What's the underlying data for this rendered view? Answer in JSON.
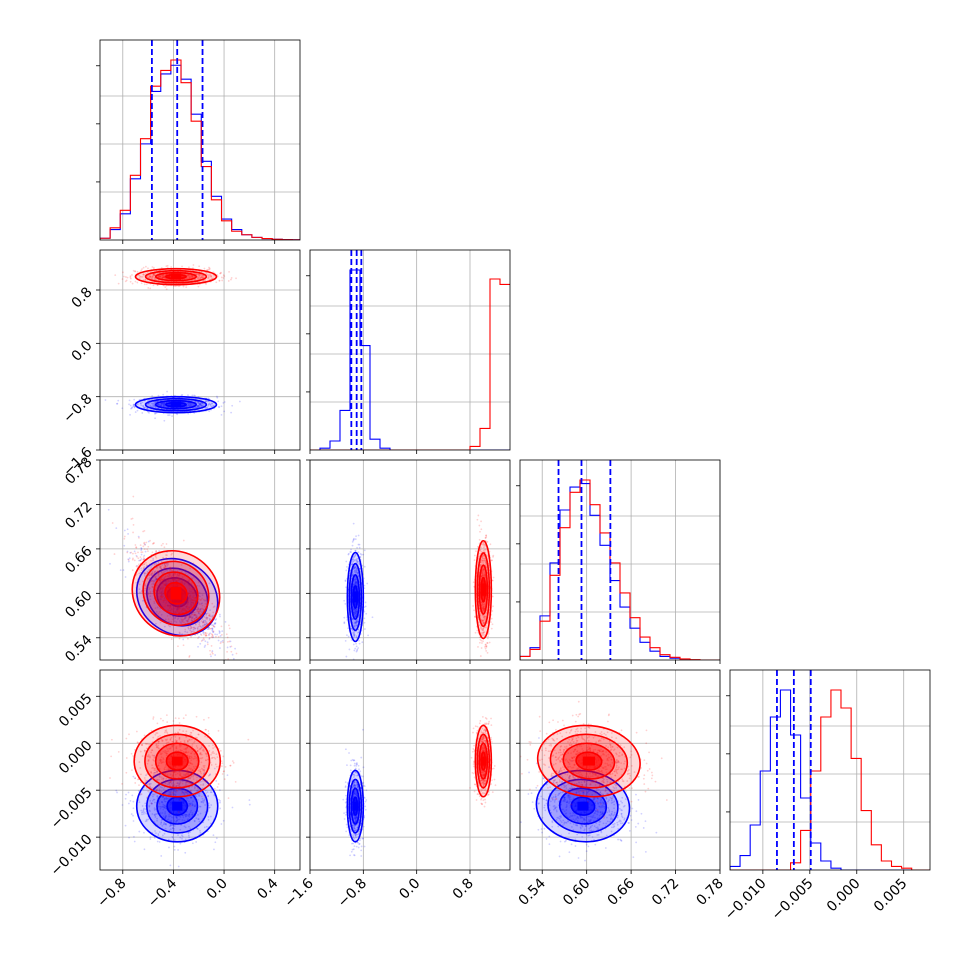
{
  "chart_data": {
    "type": "corner",
    "parameters": 4,
    "colors": {
      "sample_a": "#0000ff",
      "sample_b": "#ff0000"
    },
    "grid": true,
    "ranges": [
      [
        -0.98,
        0.6
      ],
      [
        -1.6,
        1.4
      ],
      [
        0.51,
        0.78
      ],
      [
        -0.0135,
        0.0078
      ]
    ],
    "ticks": {
      "p0": [
        "−0.8",
        "−0.4",
        "0.0",
        "0.4"
      ],
      "p1": [
        "−1.6",
        "−0.8",
        "0.0",
        "0.8"
      ],
      "p2": [
        "0.54",
        "0.60",
        "0.66",
        "0.72",
        "0.78"
      ],
      "p3": [
        "−0.010",
        "−0.005",
        "0.000",
        "0.005"
      ]
    },
    "tick_values": {
      "p0": [
        -0.8,
        -0.4,
        0.0,
        0.4
      ],
      "p1": [
        -1.6,
        -0.8,
        0.0,
        0.8
      ],
      "p2": [
        0.54,
        0.6,
        0.66,
        0.72,
        0.78
      ],
      "p3": [
        -0.01,
        -0.005,
        0.0,
        0.005
      ]
    },
    "histograms": [
      {
        "param": 0,
        "bins": [
          -0.98,
          -0.9,
          -0.82,
          -0.74,
          -0.66,
          -0.58,
          -0.5,
          -0.42,
          -0.34,
          -0.26,
          -0.18,
          -0.1,
          -0.02,
          0.06,
          0.14,
          0.22,
          0.3,
          0.38,
          0.46,
          0.54,
          0.62
        ],
        "blue": [
          0.01,
          0.06,
          0.15,
          0.35,
          0.55,
          0.85,
          0.95,
          1.0,
          0.92,
          0.72,
          0.45,
          0.25,
          0.12,
          0.06,
          0.03,
          0.015,
          0.008,
          0.004,
          0.002,
          0.001
        ],
        "red": [
          0.01,
          0.07,
          0.17,
          0.37,
          0.58,
          0.88,
          0.97,
          1.03,
          0.9,
          0.68,
          0.42,
          0.23,
          0.11,
          0.05,
          0.03,
          0.015,
          0.008,
          0.004,
          0.002,
          0.001
        ],
        "quantiles": [
          -0.57,
          -0.37,
          -0.17
        ]
      },
      {
        "param": 1,
        "bins": [
          -1.6,
          -1.45,
          -1.3,
          -1.15,
          -1.0,
          -0.85,
          -0.7,
          -0.55,
          -0.4,
          -0.25,
          -0.1,
          0.05,
          0.2,
          0.35,
          0.5,
          0.65,
          0.8,
          0.95,
          1.1,
          1.25,
          1.4
        ],
        "blue": [
          0.0,
          0.01,
          0.05,
          0.22,
          1.0,
          0.58,
          0.06,
          0.01,
          0,
          0,
          0,
          0,
          0,
          0,
          0,
          0,
          0,
          0,
          0,
          0
        ],
        "red": [
          0,
          0,
          0,
          0,
          0,
          0,
          0,
          0,
          0,
          0,
          0,
          0,
          0,
          0,
          0,
          0,
          0.02,
          0.12,
          0.95,
          0.92
        ],
        "red_tail": 0.06,
        "quantiles": [
          -0.98,
          -0.9,
          -0.83
        ]
      },
      {
        "param": 2,
        "bins": [
          0.51,
          0.5235,
          0.537,
          0.5505,
          0.564,
          0.5775,
          0.591,
          0.6045,
          0.618,
          0.6315,
          0.645,
          0.6585,
          0.672,
          0.6855,
          0.699,
          0.7125,
          0.726,
          0.7395,
          0.753,
          0.7665,
          0.78
        ],
        "blue": [
          0.02,
          0.07,
          0.25,
          0.55,
          0.85,
          0.98,
          1.0,
          0.82,
          0.65,
          0.45,
          0.3,
          0.18,
          0.1,
          0.05,
          0.02,
          0.01,
          0.005,
          0,
          0,
          0
        ],
        "red": [
          0.02,
          0.06,
          0.22,
          0.48,
          0.75,
          0.95,
          1.02,
          0.88,
          0.72,
          0.55,
          0.38,
          0.24,
          0.13,
          0.07,
          0.03,
          0.015,
          0.006,
          0.002,
          0,
          0
        ],
        "quantiles": [
          0.562,
          0.593,
          0.632
        ]
      },
      {
        "param": 3,
        "bins": [
          -0.0135,
          -0.01243,
          -0.01135,
          -0.01028,
          -0.0092,
          -0.00813,
          -0.00705,
          -0.00598,
          -0.0049,
          -0.00383,
          -0.00275,
          -0.00168,
          -0.0006,
          0.00047,
          0.00155,
          0.00262,
          0.0037,
          0.00477,
          0.00585,
          0.00692,
          0.008
        ],
        "blue": [
          0.02,
          0.08,
          0.25,
          0.55,
          0.85,
          1.0,
          0.75,
          0.4,
          0.15,
          0.05,
          0.01,
          0,
          0,
          0,
          0,
          0,
          0,
          0,
          0,
          0
        ],
        "red": [
          0,
          0,
          0,
          0,
          0,
          0,
          0.04,
          0.22,
          0.55,
          0.85,
          1.0,
          0.9,
          0.62,
          0.33,
          0.14,
          0.05,
          0.02,
          0.01,
          0,
          0
        ],
        "quantiles": [
          -0.0085,
          -0.0067,
          -0.0049
        ]
      }
    ],
    "scatter_panels": [
      {
        "row": 1,
        "col": 0,
        "blue_center": [
          -0.38,
          -0.92
        ],
        "blue_sd": [
          0.16,
          0.06
        ],
        "red_center": [
          -0.38,
          1.0
        ],
        "red_sd": [
          0.16,
          0.06
        ],
        "rho": 0
      },
      {
        "row": 2,
        "col": 0,
        "blue_center": [
          -0.37,
          0.595
        ],
        "blue_sd": [
          0.16,
          0.03
        ],
        "red_center": [
          -0.38,
          0.6
        ],
        "red_sd": [
          0.17,
          0.034
        ],
        "rho": -0.75
      },
      {
        "row": 2,
        "col": 1,
        "blue_center": [
          -0.92,
          0.595
        ],
        "blue_sd": [
          0.06,
          0.03
        ],
        "red_center": [
          1.0,
          0.605
        ],
        "red_sd": [
          0.06,
          0.033
        ],
        "rho": 0
      },
      {
        "row": 3,
        "col": 0,
        "blue_center": [
          -0.37,
          -0.0067
        ],
        "blue_sd": [
          0.16,
          0.0019
        ],
        "red_center": [
          -0.37,
          -0.0019
        ],
        "red_sd": [
          0.17,
          0.0019
        ],
        "rho": 0
      },
      {
        "row": 3,
        "col": 1,
        "blue_center": [
          -0.92,
          -0.0067
        ],
        "blue_sd": [
          0.06,
          0.0019
        ],
        "red_center": [
          1.0,
          -0.0019
        ],
        "red_sd": [
          0.06,
          0.0019
        ],
        "rho": 0
      },
      {
        "row": 3,
        "col": 2,
        "blue_center": [
          0.595,
          -0.0067
        ],
        "blue_sd": [
          0.03,
          0.0019
        ],
        "red_center": [
          0.603,
          -0.0019
        ],
        "red_sd": [
          0.033,
          0.0019
        ],
        "rho": -0.15
      }
    ]
  }
}
